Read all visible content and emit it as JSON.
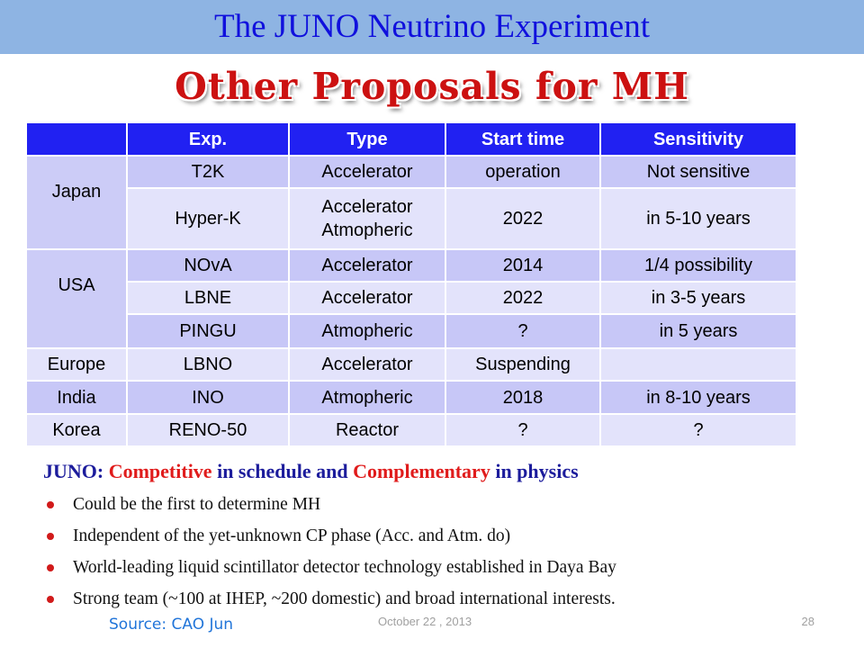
{
  "slide": {
    "title": "The JUNO Neutrino Experiment",
    "subtitle": "Other Proposals for MH",
    "source": "Source: CAO Jun",
    "date": "October 22 ,  2013",
    "page_number": "28"
  },
  "table": {
    "headers": [
      "",
      "Exp.",
      "Type",
      "Start time",
      "Sensitivity"
    ],
    "countries": [
      "Japan",
      "USA",
      "Europe",
      "India",
      "Korea"
    ],
    "rows": [
      {
        "exp": "T2K",
        "type": "Accelerator",
        "start": "operation",
        "sensitivity": "Not sensitive"
      },
      {
        "exp": "Hyper-K",
        "type_line1": "Accelerator",
        "type_line2": "Atmopheric",
        "start": "2022",
        "sensitivity": "in 5-10 years"
      },
      {
        "exp": "NOvA",
        "type": "Accelerator",
        "start": "2014",
        "sensitivity": "1/4 possibility"
      },
      {
        "exp": "LBNE",
        "type": "Accelerator",
        "start": "2022",
        "sensitivity": "in 3-5 years"
      },
      {
        "exp": "PINGU",
        "type": "Atmopheric",
        "start": "?",
        "sensitivity": "in 5 years"
      },
      {
        "exp": "LBNO",
        "type": "Accelerator",
        "start": "Suspending",
        "sensitivity": ""
      },
      {
        "exp": "INO",
        "type": "Atmopheric",
        "start": "2018",
        "sensitivity": "in 8-10 years"
      },
      {
        "exp": "RENO-50",
        "type": "Reactor",
        "start": "?",
        "sensitivity": "?"
      }
    ]
  },
  "summary": {
    "lead_part1": "JUNO: ",
    "lead_part2": "Competitive",
    "lead_part3": " in schedule and ",
    "lead_part4": "Complementary",
    "lead_part5": " in physics",
    "bullets": [
      "Could be the first to determine MH",
      "Independent of the yet-unknown CP phase (Acc. and Atm. do)",
      "World-leading liquid scintillator detector technology established in Daya Bay",
      "Strong team (~100 at IHEP, ~200 domestic) and broad international interests."
    ]
  },
  "colors": {
    "header_bar": "#8eb4e3",
    "title_text": "#1010dd",
    "subtitle_text": "#cc1111",
    "table_header": "#2121f2",
    "row_dark": "#c7c7f7",
    "row_light": "#e3e3fb",
    "lead_text": "#1c1c9c",
    "highlight_red": "#e01b1b",
    "source_text": "#2175d9"
  }
}
